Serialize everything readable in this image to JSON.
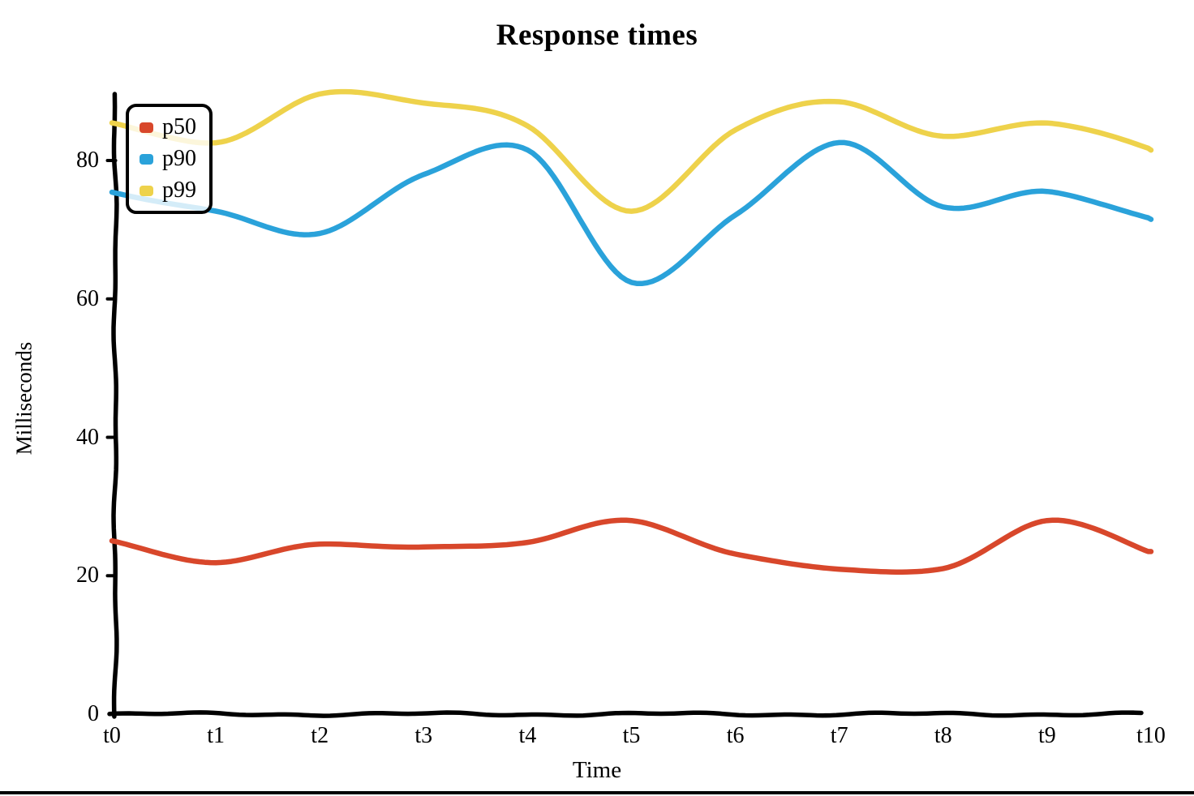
{
  "chart_data": {
    "type": "line",
    "title": "Response times",
    "xlabel": "Time",
    "ylabel": "Milliseconds",
    "style": "hand-drawn-xkcd-like",
    "grid": false,
    "legend_position": "upper-left",
    "axis_color": "#000000",
    "background_color": "#ffffff",
    "x_tick_labels": [
      "t0",
      "t1",
      "t2",
      "t3",
      "t4",
      "t5",
      "t6",
      "t7",
      "t8",
      "t9",
      "t10"
    ],
    "y_tick_labels": [
      "0",
      "20",
      "40",
      "60",
      "80"
    ],
    "y_tick_values": [
      0,
      20,
      40,
      60,
      80
    ],
    "ylim": [
      0,
      93
    ],
    "series": [
      {
        "name": "p50",
        "color": "#d8472b",
        "values": [
          25,
          22,
          24.5,
          24,
          25,
          28,
          23,
          21,
          21,
          28,
          23.5
        ]
      },
      {
        "name": "p90",
        "color": "#2aa2da",
        "values": [
          75.5,
          72.5,
          69.5,
          78,
          81.5,
          62.5,
          72,
          82.5,
          73.5,
          75.5,
          71.5
        ]
      },
      {
        "name": "p99",
        "color": "#eed24b",
        "values": [
          85.5,
          82.5,
          89.5,
          88.5,
          85,
          72.5,
          84.5,
          88.5,
          83.5,
          85.5,
          81.5
        ]
      }
    ]
  }
}
